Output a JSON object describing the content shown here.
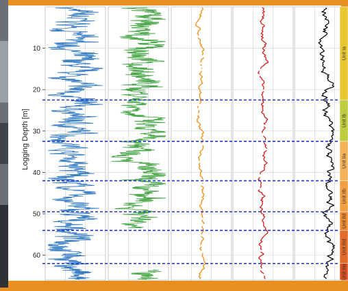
{
  "chart_data": {
    "type": "line",
    "ylabel": "Logging Depth [m]",
    "y_ticks": [
      10,
      20,
      30,
      40,
      50,
      60
    ],
    "ylim": [
      0,
      66
    ],
    "y_inverted": true,
    "grid": true,
    "tracks": [
      {
        "color": "#3a7fc4",
        "center": 0.45,
        "amplitude": 0.3,
        "style": "dense"
      },
      {
        "color": "#4aa84a",
        "center": 0.55,
        "amplitude": 0.3,
        "style": "dense-gapped"
      },
      {
        "color": "#f0901a",
        "center": 0.5,
        "amplitude": 0.1,
        "style": "smooth-dotted"
      },
      {
        "color": "#d42020",
        "center": 0.5,
        "amplitude": 0.12,
        "style": "smooth-dotted"
      },
      {
        "color": "#111111",
        "center": 0.55,
        "amplitude": 0.2,
        "style": "smooth"
      }
    ],
    "unit_boundaries": [
      22.5,
      32.5,
      42,
      49.5,
      54,
      62
    ],
    "units": [
      {
        "label": "Unit Ia",
        "from": 0,
        "to": 22.5,
        "color": "#e8c832"
      },
      {
        "label": "Unit Ib",
        "from": 22.5,
        "to": 32.5,
        "color": "#c0cc40"
      },
      {
        "label": "Unit IIa",
        "from": 32.5,
        "to": 42,
        "color": "#f2b25a"
      },
      {
        "label": "Unit IIb",
        "from": 42,
        "to": 49.5,
        "color": "#f0a040"
      },
      {
        "label": "Unit IId",
        "from": 49.5,
        "to": 54,
        "color": "#ee8a30"
      },
      {
        "label": "Unit IIId",
        "from": 54,
        "to": 62,
        "color": "#e46a28"
      },
      {
        "label": "Unit IIIe",
        "from": 62,
        "to": 66,
        "color": "#d85020"
      }
    ]
  }
}
